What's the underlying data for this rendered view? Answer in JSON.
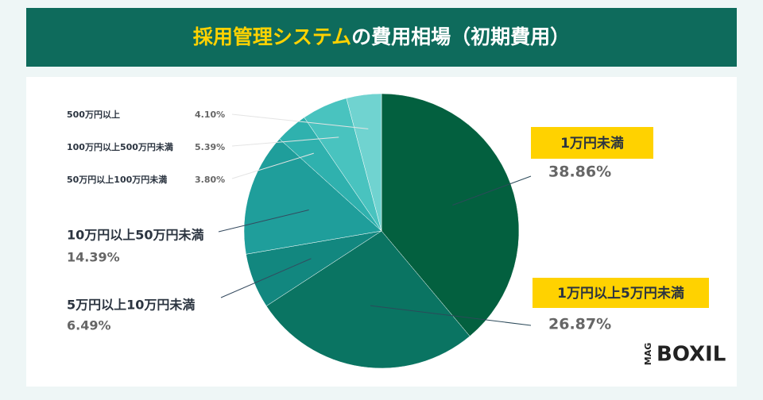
{
  "chart_data": {
    "type": "pie",
    "title": {
      "highlight": "採用管理システム",
      "rest": "の費用相場（初期費用）"
    },
    "categories": [
      "1万円未満",
      "1万円以上5万円未満",
      "5万円以上10万円未満",
      "10万円以上50万円未満",
      "50万円以上100万円未満",
      "100万円以上500万円未満",
      "500万円以上"
    ],
    "values": [
      38.86,
      26.87,
      6.49,
      14.39,
      3.8,
      5.39,
      4.1
    ],
    "value_labels": [
      "38.86%",
      "26.87%",
      "6.49%",
      "14.39%",
      "3.80%",
      "5.39%",
      "4.10%"
    ],
    "colors": [
      "#03603f",
      "#0a7462",
      "#12877f",
      "#1f9e9b",
      "#2fb1ae",
      "#49c3bf",
      "#70d3d0"
    ],
    "logo": {
      "mag": "MAG",
      "name": "BOXIL"
    }
  }
}
